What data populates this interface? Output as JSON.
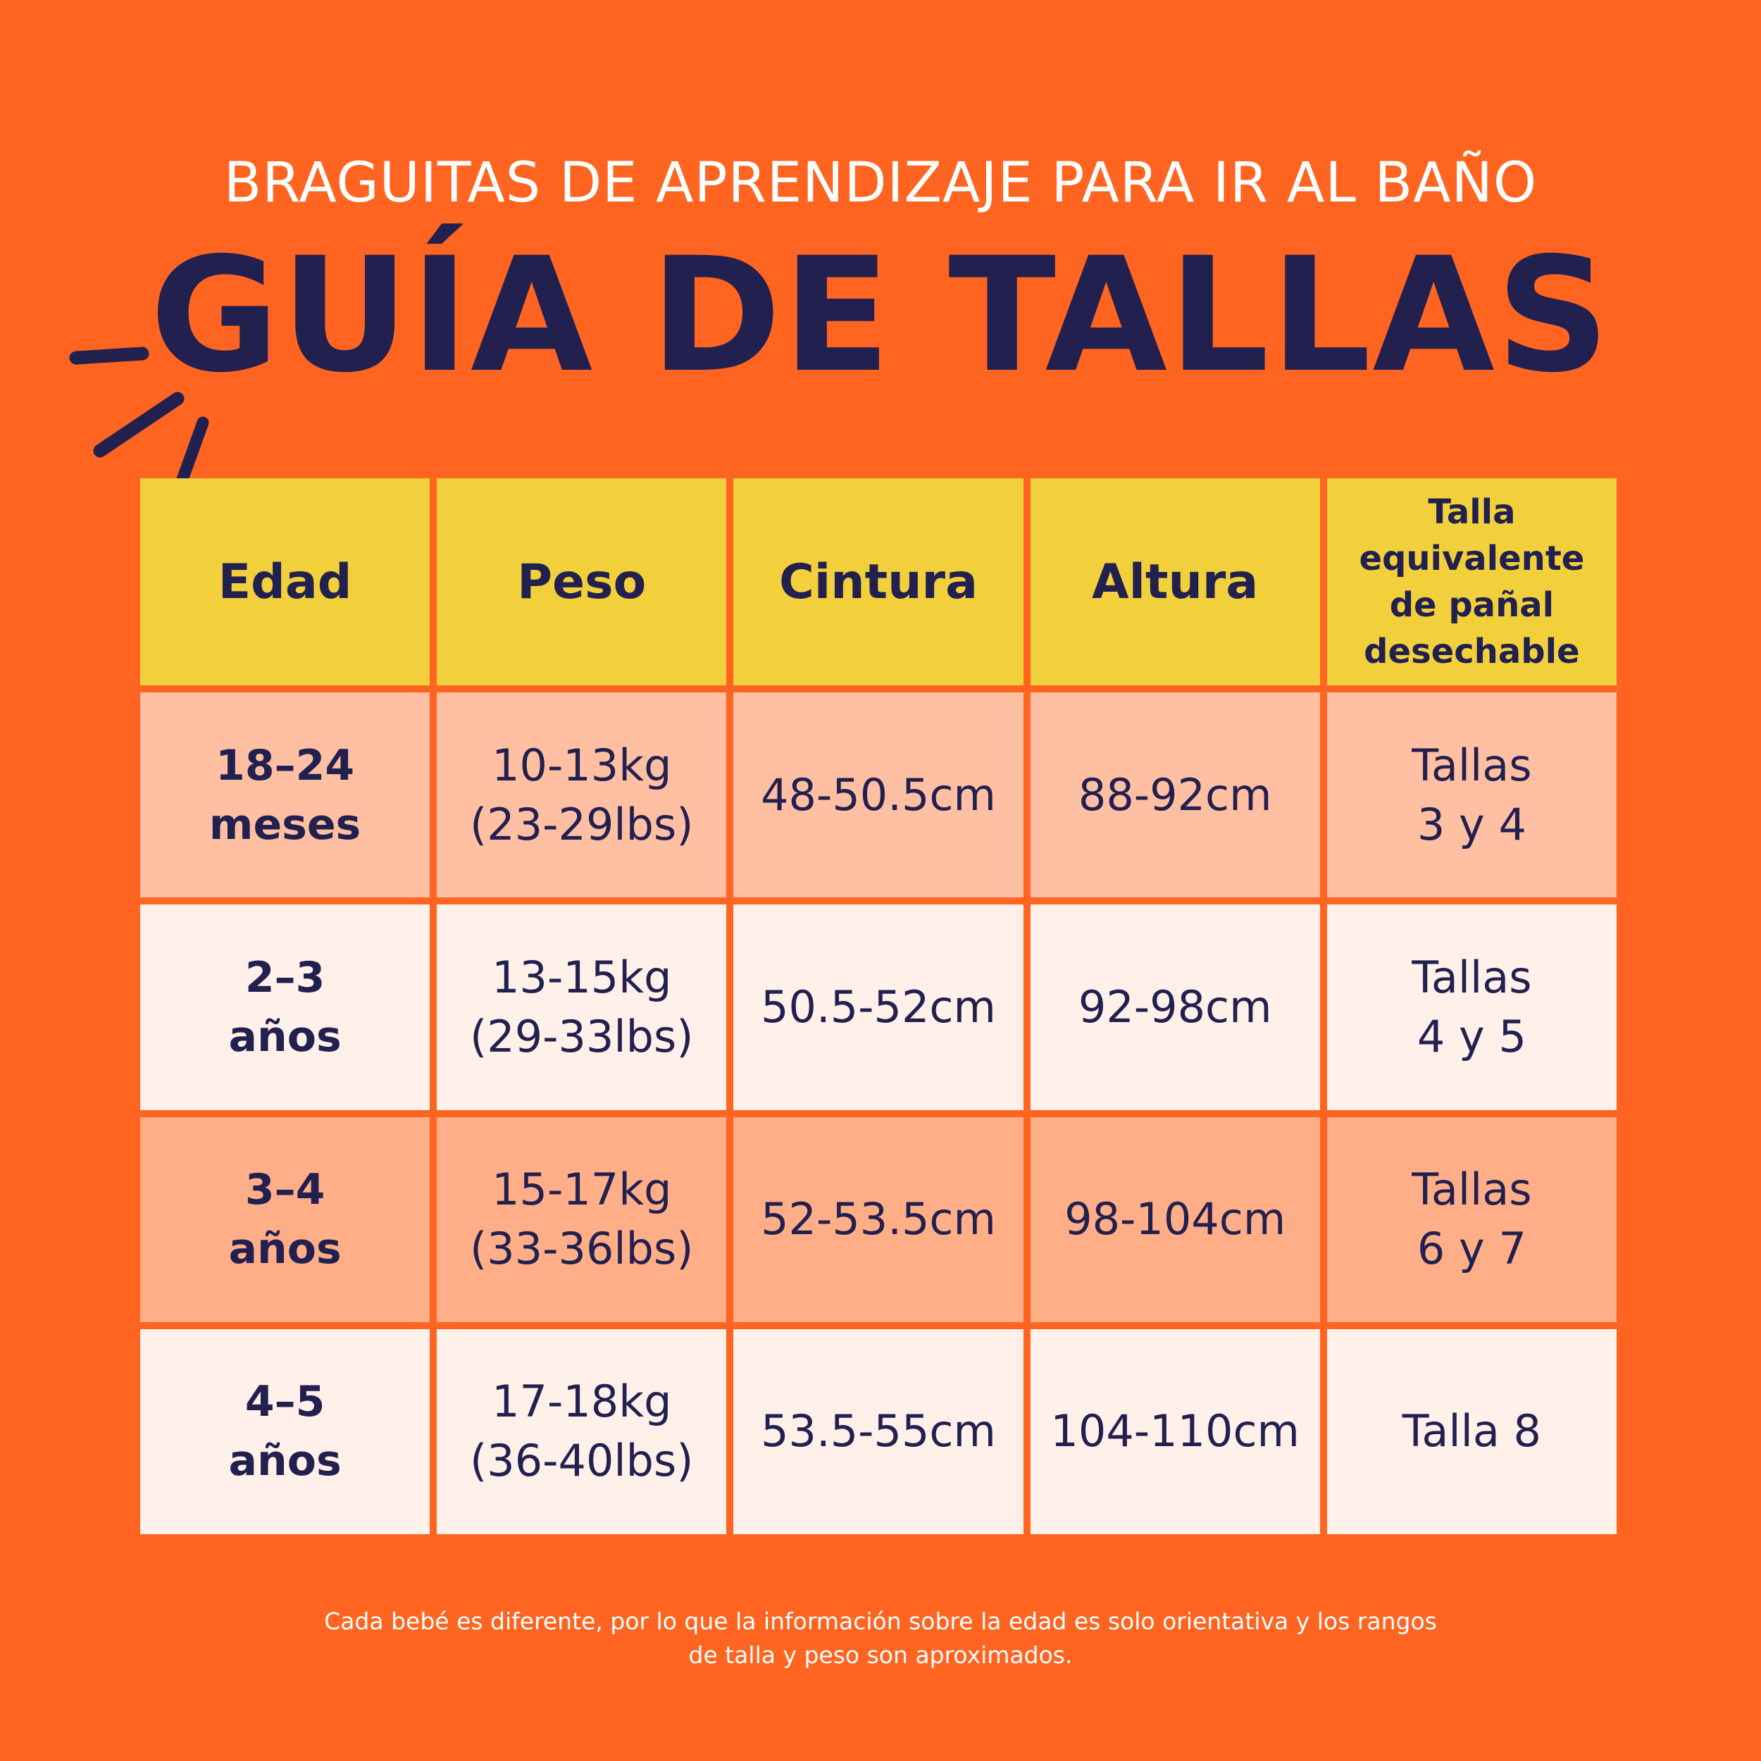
{
  "header": {
    "kicker": "BRAGUITAS DE APRENDIZAJE PARA IR AL BAÑO",
    "title": "GUÍA DE TALLAS"
  },
  "decoration": {
    "icon": "burst-lines-icon",
    "color": "#22204F"
  },
  "table": {
    "columns": [
      "Edad",
      "Peso",
      "Cintura",
      "Altura",
      "Talla equivalente de pañal desechable"
    ],
    "equivalent_header_lines": [
      "Talla",
      "equivalente",
      "de pañal",
      "desechable"
    ],
    "rows": [
      {
        "age": [
          "18–24",
          "meses"
        ],
        "weight": [
          "10-13kg",
          "(23-29lbs)"
        ],
        "waist": "48-50.5cm",
        "height": "88-92cm",
        "size": [
          "Tallas",
          "3 y 4"
        ]
      },
      {
        "age": [
          "2–3",
          "años"
        ],
        "weight": [
          "13-15kg",
          "(29-33lbs)"
        ],
        "waist": "50.5-52cm",
        "height": "92-98cm",
        "size": [
          "Tallas",
          "4 y 5"
        ]
      },
      {
        "age": [
          "3–4",
          "años"
        ],
        "weight": [
          "15-17kg",
          "(33-36lbs)"
        ],
        "waist": "52-53.5cm",
        "height": "98-104cm",
        "size": [
          "Tallas",
          "6 y 7"
        ]
      },
      {
        "age": [
          "4–5",
          "años"
        ],
        "weight": [
          "17-18kg",
          "(36-40lbs)"
        ],
        "waist": "53.5-55cm",
        "height": "104-110cm",
        "size": [
          "Talla 8"
        ]
      }
    ]
  },
  "footnote": [
    "Cada bebé es diferente, por lo que la información sobre la edad es solo orientativa y los rangos",
    "de talla y peso son aproximados."
  ],
  "colors": {
    "background": "#FF6521",
    "header_row": "#F2D03C",
    "row_light_peach": "#FFBFA2",
    "row_cream": "#FFF0EA",
    "row_peach": "#FFAE88",
    "navy_text": "#22204F"
  }
}
